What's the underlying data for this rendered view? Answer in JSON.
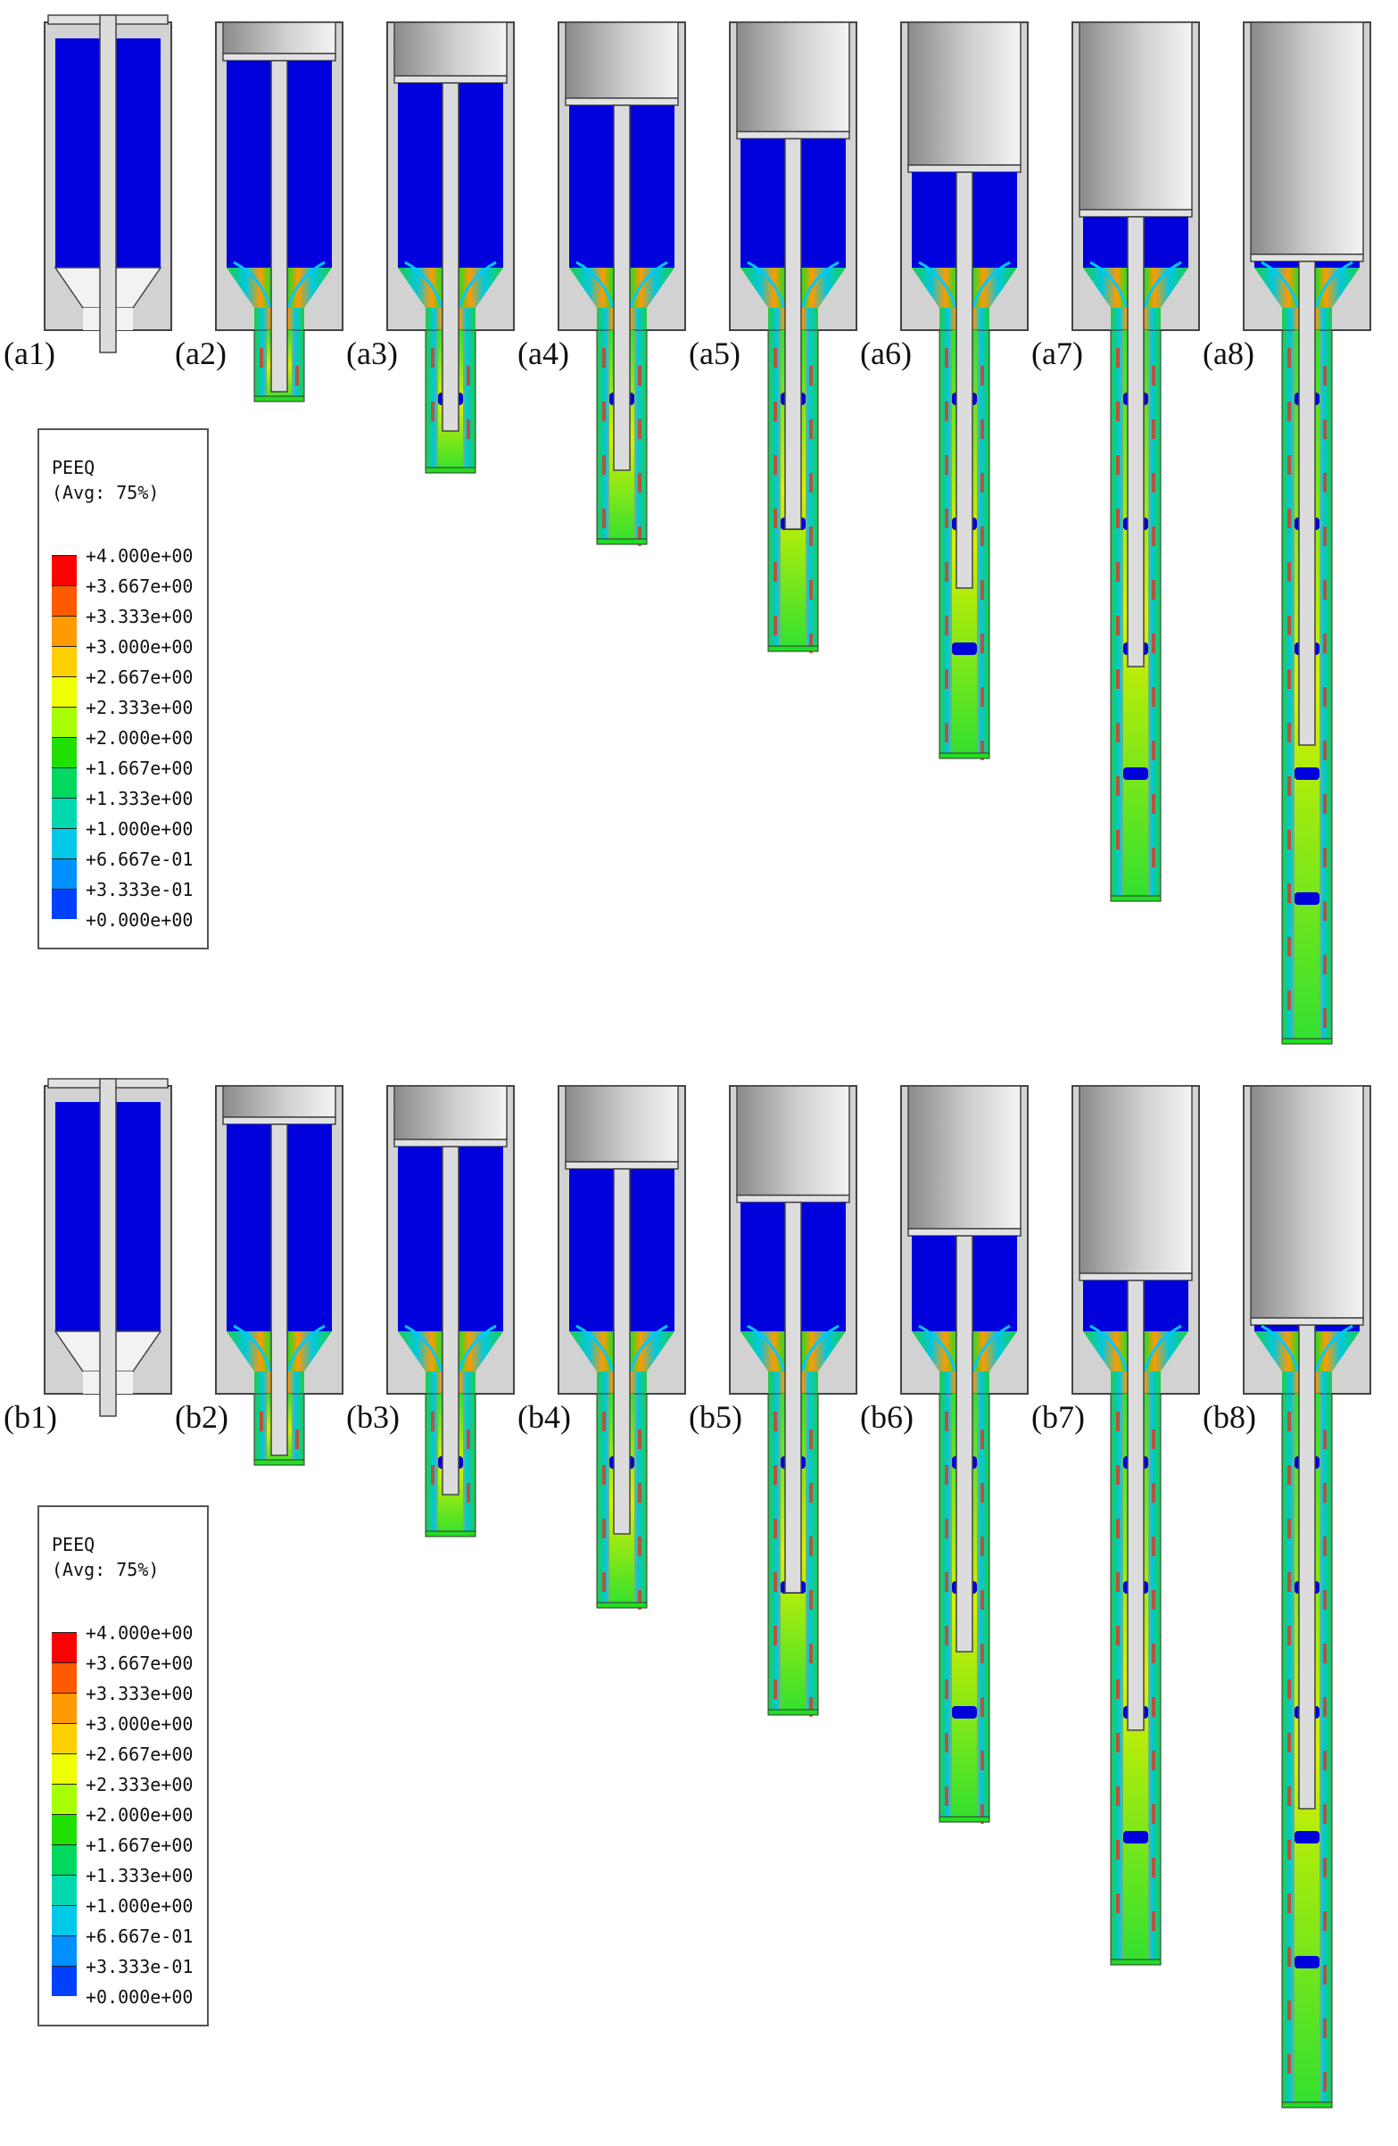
{
  "figure": {
    "rows": [
      {
        "id": "a",
        "panels": [
          {
            "label": "(a1)",
            "extrusion_progress": 0.0
          },
          {
            "label": "(a2)",
            "extrusion_progress": 0.1
          },
          {
            "label": "(a3)",
            "extrusion_progress": 0.2
          },
          {
            "label": "(a4)",
            "extrusion_progress": 0.3
          },
          {
            "label": "(a5)",
            "extrusion_progress": 0.45
          },
          {
            "label": "(a6)",
            "extrusion_progress": 0.6
          },
          {
            "label": "(a7)",
            "extrusion_progress": 0.8
          },
          {
            "label": "(a8)",
            "extrusion_progress": 1.0
          }
        ]
      },
      {
        "id": "b",
        "panels": [
          {
            "label": "(b1)",
            "extrusion_progress": 0.0
          },
          {
            "label": "(b2)",
            "extrusion_progress": 0.1
          },
          {
            "label": "(b3)",
            "extrusion_progress": 0.2
          },
          {
            "label": "(b4)",
            "extrusion_progress": 0.3
          },
          {
            "label": "(b5)",
            "extrusion_progress": 0.45
          },
          {
            "label": "(b6)",
            "extrusion_progress": 0.6
          },
          {
            "label": "(b7)",
            "extrusion_progress": 0.8
          },
          {
            "label": "(b8)",
            "extrusion_progress": 1.0
          }
        ]
      }
    ],
    "legends": [
      {
        "variable": "PEEQ",
        "averaging": "(Avg: 75%)",
        "values": [
          "+4.000e+00",
          "+3.667e+00",
          "+3.333e+00",
          "+3.000e+00",
          "+2.667e+00",
          "+2.333e+00",
          "+2.000e+00",
          "+1.667e+00",
          "+1.333e+00",
          "+1.000e+00",
          "+6.667e-01",
          "+3.333e-01",
          "+0.000e+00"
        ],
        "colors": [
          "#ff0000",
          "#ff5a00",
          "#ff9a00",
          "#ffd000",
          "#f0ff00",
          "#a8ff00",
          "#20e000",
          "#00d860",
          "#00d8b0",
          "#00c8e8",
          "#0090ff",
          "#0040ff",
          "#0000e0"
        ]
      },
      {
        "variable": "PEEQ",
        "averaging": "(Avg: 75%)",
        "values": [
          "+4.000e+00",
          "+3.667e+00",
          "+3.333e+00",
          "+3.000e+00",
          "+2.667e+00",
          "+2.333e+00",
          "+2.000e+00",
          "+1.667e+00",
          "+1.333e+00",
          "+1.000e+00",
          "+6.667e-01",
          "+3.333e-01",
          "+0.000e+00"
        ],
        "colors": [
          "#ff0000",
          "#ff5a00",
          "#ff9a00",
          "#ffd000",
          "#f0ff00",
          "#a8ff00",
          "#20e000",
          "#00d860",
          "#00d8b0",
          "#00c8e8",
          "#0090ff",
          "#0040ff",
          "#0000e0"
        ]
      }
    ],
    "colors": {
      "die": "#d2d2d2",
      "die_edge": "#444444",
      "billet_undeformed": "#0000dd",
      "billet_low": "#00c8ff",
      "billet_mid": "#22dd22",
      "billet_high": "#ffee00",
      "billet_peak": "#ff2200"
    }
  }
}
